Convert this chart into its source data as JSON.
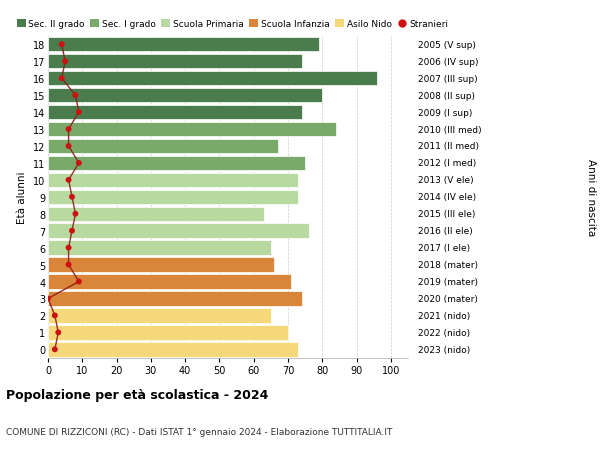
{
  "ages": [
    18,
    17,
    16,
    15,
    14,
    13,
    12,
    11,
    10,
    9,
    8,
    7,
    6,
    5,
    4,
    3,
    2,
    1,
    0
  ],
  "bar_values": [
    79,
    74,
    96,
    80,
    74,
    84,
    67,
    75,
    73,
    73,
    63,
    76,
    65,
    66,
    71,
    74,
    65,
    70,
    73
  ],
  "stranieri": [
    4,
    5,
    4,
    8,
    9,
    6,
    6,
    9,
    6,
    7,
    8,
    7,
    6,
    6,
    9,
    0,
    2,
    3,
    2
  ],
  "right_labels": [
    "2005 (V sup)",
    "2006 (IV sup)",
    "2007 (III sup)",
    "2008 (II sup)",
    "2009 (I sup)",
    "2010 (III med)",
    "2011 (II med)",
    "2012 (I med)",
    "2013 (V ele)",
    "2014 (IV ele)",
    "2015 (III ele)",
    "2016 (II ele)",
    "2017 (I ele)",
    "2018 (mater)",
    "2019 (mater)",
    "2020 (mater)",
    "2021 (nido)",
    "2022 (nido)",
    "2023 (nido)"
  ],
  "bar_colors": [
    "#4a7c4e",
    "#4a7c4e",
    "#4a7c4e",
    "#4a7c4e",
    "#4a7c4e",
    "#7aaa6a",
    "#7aaa6a",
    "#7aaa6a",
    "#b8d9a0",
    "#b8d9a0",
    "#b8d9a0",
    "#b8d9a0",
    "#b8d9a0",
    "#d9853a",
    "#d9853a",
    "#d9853a",
    "#f5d87a",
    "#f5d87a",
    "#f5d87a"
  ],
  "legend_labels": [
    "Sec. II grado",
    "Sec. I grado",
    "Scuola Primaria",
    "Scuola Infanzia",
    "Asilo Nido",
    "Stranieri"
  ],
  "legend_colors": [
    "#4a7c4e",
    "#7aaa6a",
    "#b8d9a0",
    "#d9853a",
    "#f5d87a",
    "#cc1111"
  ],
  "title": "Popolazione per età scolastica - 2024",
  "subtitle": "COMUNE DI RIZZICONI (RC) - Dati ISTAT 1° gennaio 2024 - Elaborazione TUTTITALIA.IT",
  "ylabel": "Età alunni",
  "ylabel2": "Anni di nascita",
  "xlabel_ticks": [
    0,
    10,
    20,
    30,
    40,
    50,
    60,
    70,
    80,
    90,
    100
  ],
  "xlim": [
    0,
    105
  ],
  "bg_color": "#ffffff"
}
